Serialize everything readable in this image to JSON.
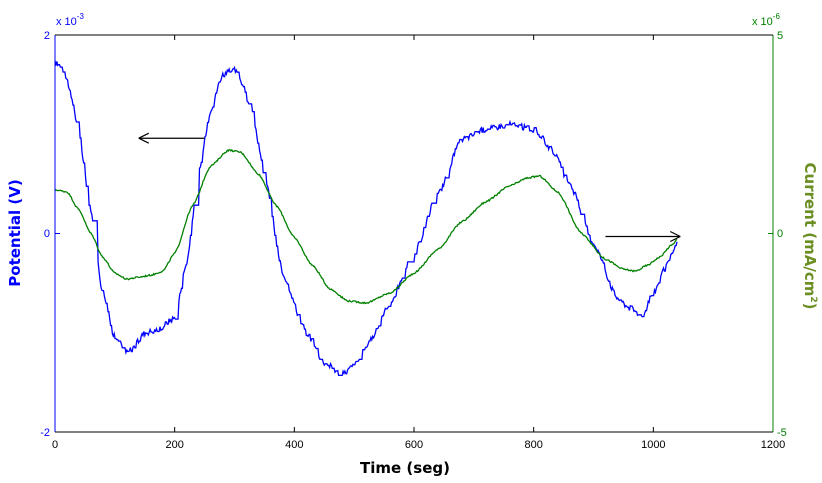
{
  "chart_data": {
    "type": "line",
    "xlabel": "Time (seg)",
    "xlim": [
      0,
      1200
    ],
    "x_ticks": [
      "0",
      "200",
      "400",
      "600",
      "800",
      "1000",
      "1200"
    ],
    "left_axis": {
      "label": "Potential (V)",
      "scale_label": "x 10",
      "scale_exponent": "-3",
      "lim": [
        -2,
        2
      ],
      "ticks": [
        "-2",
        "0",
        "2"
      ],
      "color": "#0000ff"
    },
    "right_axis": {
      "label": "Current (mA/cm",
      "label_superscript": "2",
      "label_suffix": ")",
      "scale_label": "x 10",
      "scale_exponent": "-6",
      "lim": [
        -5,
        5
      ],
      "ticks": [
        "-5",
        "0",
        "5"
      ],
      "color": "#008000"
    },
    "series": [
      {
        "axis": "left",
        "color": "#0000ff",
        "noise": 0.03,
        "x": [
          0,
          10,
          20,
          30,
          40,
          60,
          80,
          100,
          120,
          130,
          150,
          170,
          200,
          220,
          240,
          260,
          280,
          300,
          310,
          330,
          350,
          380,
          420,
          450,
          480,
          500,
          530,
          560,
          600,
          640,
          680,
          720,
          760,
          800,
          830,
          860,
          900,
          940,
          960,
          980,
          1000,
          1020,
          1040
        ],
        "y": [
          1.72,
          1.68,
          1.55,
          1.3,
          1.0,
          0.2,
          -0.6,
          -1.05,
          -1.2,
          -1.15,
          -1.0,
          -0.97,
          -0.85,
          -0.3,
          0.6,
          1.25,
          1.6,
          1.65,
          1.55,
          1.2,
          0.6,
          -0.4,
          -1.0,
          -1.3,
          -1.42,
          -1.33,
          -1.05,
          -0.7,
          -0.2,
          0.4,
          0.95,
          1.05,
          1.1,
          1.05,
          0.85,
          0.5,
          -0.1,
          -0.65,
          -0.75,
          -0.82,
          -0.6,
          -0.35,
          -0.1
        ]
      },
      {
        "axis": "right",
        "color": "#008000",
        "noise": 0.02,
        "x": [
          0,
          20,
          40,
          60,
          80,
          100,
          120,
          140,
          160,
          180,
          200,
          230,
          260,
          290,
          310,
          340,
          370,
          400,
          430,
          460,
          490,
          520,
          560,
          600,
          640,
          680,
          720,
          760,
          790,
          810,
          840,
          880,
          920,
          950,
          970,
          990,
          1010,
          1030,
          1040
        ],
        "y": [
          1.1,
          1.05,
          0.6,
          0.0,
          -0.6,
          -1.0,
          -1.15,
          -1.1,
          -1.05,
          -0.95,
          -0.5,
          0.7,
          1.7,
          2.1,
          2.05,
          1.5,
          0.7,
          -0.1,
          -0.8,
          -1.4,
          -1.7,
          -1.75,
          -1.5,
          -1.0,
          -0.4,
          0.3,
          0.8,
          1.2,
          1.4,
          1.45,
          1.05,
          0.0,
          -0.65,
          -0.9,
          -0.95,
          -0.8,
          -0.6,
          -0.3,
          -0.15
        ]
      }
    ],
    "arrows": [
      {
        "direction": "left",
        "points_to": "left axis",
        "x_from": 250,
        "x_to": 140,
        "y": 0.96
      },
      {
        "direction": "right",
        "points_to": "right axis",
        "x_from": 920,
        "x_to": 1045,
        "y": -0.03
      }
    ],
    "grid": false
  }
}
